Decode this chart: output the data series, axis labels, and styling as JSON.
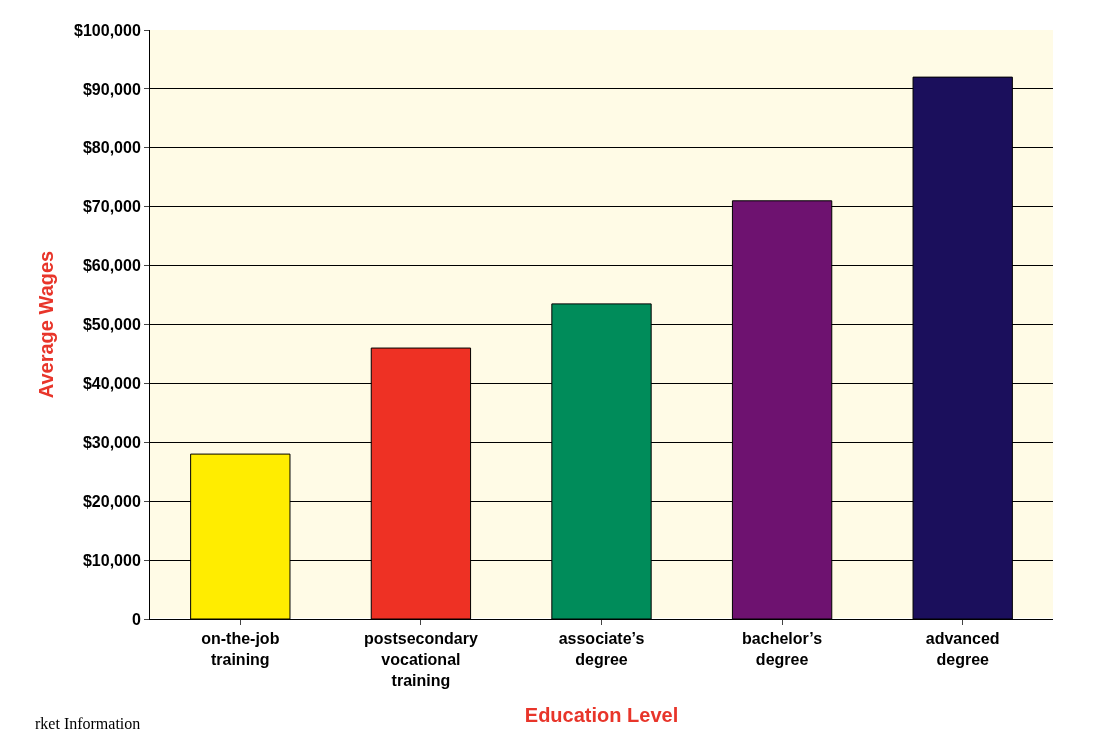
{
  "chart_data": {
    "type": "bar",
    "categories": [
      "on-the-job\ntraining",
      "postsecondary\nvocational\ntraining",
      "associate’s\ndegree",
      "bachelor’s\ndegree",
      "advanced\ndegree"
    ],
    "values": [
      28000,
      46000,
      53500,
      71000,
      92000
    ],
    "colors": [
      "#ffed00",
      "#ee3124",
      "#008c5a",
      "#6e1270",
      "#1b0f5c"
    ],
    "xlabel": "Education Level",
    "ylabel": "Average Wages",
    "ylim": [
      0,
      100000
    ],
    "yticks": [
      {
        "value": 0,
        "label": "0"
      },
      {
        "value": 10000,
        "label": "$10,000"
      },
      {
        "value": 20000,
        "label": "$20,000"
      },
      {
        "value": 30000,
        "label": "$30,000"
      },
      {
        "value": 40000,
        "label": "$40,000"
      },
      {
        "value": 50000,
        "label": "$50,000"
      },
      {
        "value": 60000,
        "label": "$60,000"
      },
      {
        "value": 70000,
        "label": "$70,000"
      },
      {
        "value": 80000,
        "label": "$80,000"
      },
      {
        "value": 90000,
        "label": "$90,000"
      },
      {
        "value": 100000,
        "label": "$100,000"
      }
    ],
    "grid": "y",
    "annotations": [
      "rket Information"
    ]
  }
}
